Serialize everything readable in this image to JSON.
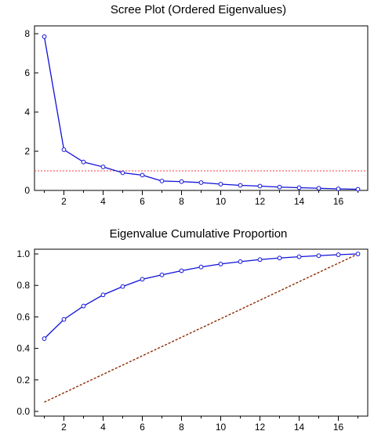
{
  "chart_data": [
    {
      "type": "line",
      "title": "Scree Plot (Ordered Eigenvalues)",
      "xlabel": "",
      "ylabel": "",
      "x": [
        1,
        2,
        3,
        4,
        5,
        6,
        7,
        8,
        9,
        10,
        11,
        12,
        13,
        14,
        15,
        16,
        17
      ],
      "xlim": [
        0.5,
        17.5
      ],
      "xticks": [
        2,
        4,
        6,
        8,
        10,
        12,
        14,
        16
      ],
      "ylim": [
        0,
        8.4
      ],
      "yticks": [
        0,
        2,
        4,
        6,
        8
      ],
      "series": [
        {
          "values": [
            7.85,
            2.08,
            1.45,
            1.2,
            0.9,
            0.78,
            0.48,
            0.45,
            0.4,
            0.32,
            0.26,
            0.22,
            0.17,
            0.14,
            0.11,
            0.08,
            0.06
          ],
          "color": "#1010d8"
        }
      ],
      "reference_line": {
        "y": 1.0,
        "color": "#ff3b3b"
      },
      "grid": false,
      "legend": false
    },
    {
      "type": "line",
      "title": "Eigenvalue Cumulative Proportion",
      "xlabel": "",
      "ylabel": "",
      "x": [
        1,
        2,
        3,
        4,
        5,
        6,
        7,
        8,
        9,
        10,
        11,
        12,
        13,
        14,
        15,
        16,
        17
      ],
      "xlim": [
        0.5,
        17.5
      ],
      "xticks": [
        2,
        4,
        6,
        8,
        10,
        12,
        14,
        16
      ],
      "ylim": [
        -0.03,
        1.03
      ],
      "yticks": [
        0.0,
        0.2,
        0.4,
        0.6,
        0.8,
        1.0
      ],
      "series": [
        {
          "values": [
            0.462,
            0.584,
            0.669,
            0.74,
            0.793,
            0.839,
            0.867,
            0.893,
            0.917,
            0.936,
            0.951,
            0.964,
            0.974,
            0.982,
            0.989,
            0.995,
            1.0
          ],
          "color": "#1010d8"
        }
      ],
      "reference_diagonal": {
        "from": [
          1,
          0.0588
        ],
        "to": [
          17,
          1.0
        ],
        "color": "#8b2a00"
      },
      "grid": false,
      "legend": false
    }
  ]
}
